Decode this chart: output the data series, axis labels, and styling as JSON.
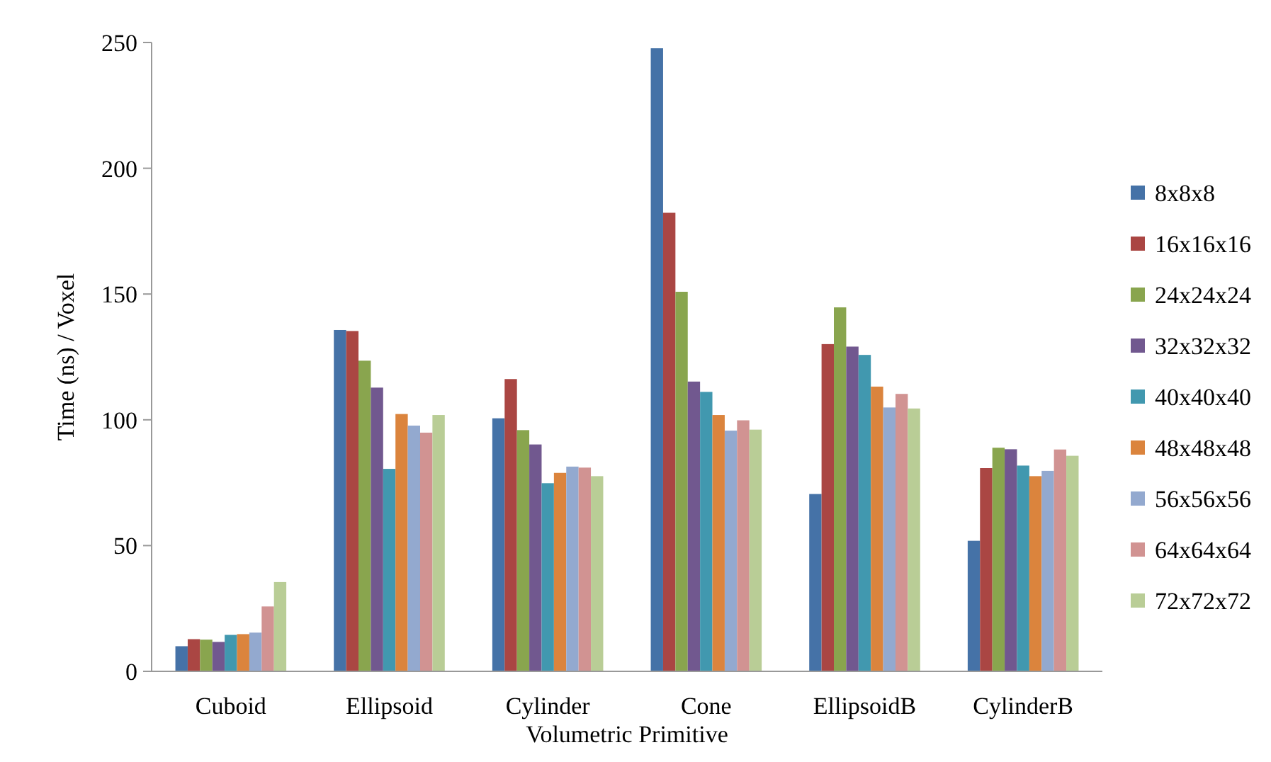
{
  "chart_data": {
    "type": "bar",
    "xlabel": "Volumetric Primitive",
    "ylabel": "Time (ns) / Voxel",
    "categories": [
      "Cuboid",
      "Ellipsoid",
      "Cylinder",
      "Cone",
      "EllipsoidB",
      "CylinderB"
    ],
    "ylim": [
      0,
      250
    ],
    "yticks": [
      0,
      50,
      100,
      150,
      200,
      250
    ],
    "grid": false,
    "legend": "right",
    "series": [
      {
        "name": "8x8x8",
        "color": "#4572a7",
        "values": [
          10,
          135.7,
          100.6,
          247.7,
          70.5,
          51.9
        ]
      },
      {
        "name": "16x16x16",
        "color": "#aa4643",
        "values": [
          12.8,
          135.3,
          116.2,
          182.3,
          130.1,
          80.8
        ]
      },
      {
        "name": "24x24x24",
        "color": "#89a54e",
        "values": [
          12.6,
          123.5,
          95.9,
          150.9,
          144.7,
          88.9
        ]
      },
      {
        "name": "32x32x32",
        "color": "#71588f",
        "values": [
          11.7,
          112.8,
          90.2,
          115.2,
          129.1,
          88.3
        ]
      },
      {
        "name": "40x40x40",
        "color": "#4198af",
        "values": [
          14.5,
          80.5,
          74.8,
          111.1,
          125.8,
          81.8
        ]
      },
      {
        "name": "48x48x48",
        "color": "#db843d",
        "values": [
          14.8,
          102.3,
          78.9,
          101.9,
          113.2,
          77.6
        ]
      },
      {
        "name": "56x56x56",
        "color": "#93a9cf",
        "values": [
          15.4,
          97.7,
          81.4,
          95.7,
          104.9,
          79.7
        ]
      },
      {
        "name": "64x64x64",
        "color": "#d19392",
        "values": [
          25.8,
          94.9,
          81,
          99.8,
          110.3,
          88.2
        ]
      },
      {
        "name": "72x72x72",
        "color": "#b9cd96",
        "values": [
          35.5,
          101.9,
          77.6,
          96.1,
          104.5,
          85.7
        ]
      }
    ]
  }
}
